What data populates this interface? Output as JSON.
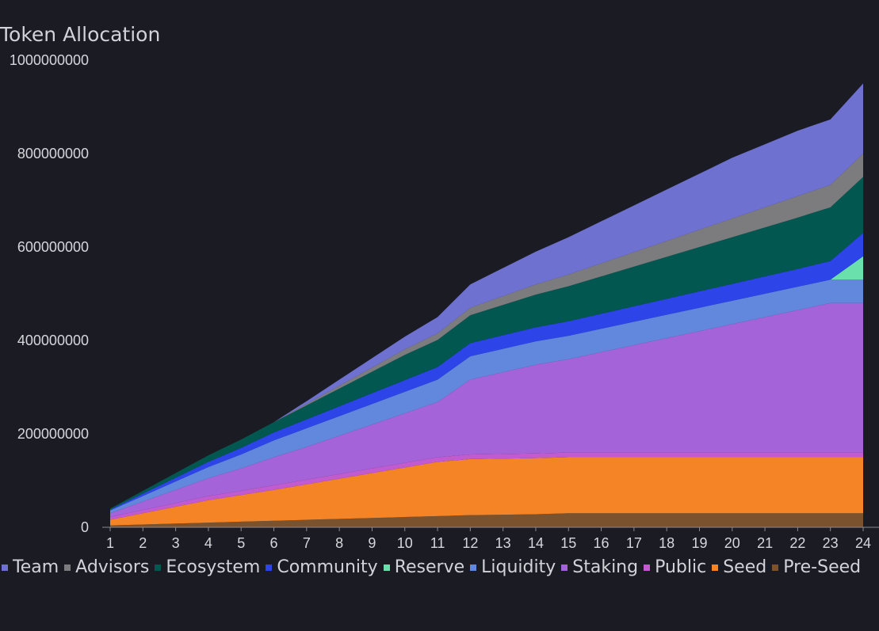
{
  "chart_data": {
    "type": "area",
    "stacked": true,
    "title": "Token Allocation",
    "xlabel": "",
    "ylabel": "",
    "ylim": [
      0,
      1000000000
    ],
    "yticks": [
      0,
      200000000,
      400000000,
      600000000,
      800000000,
      1000000000
    ],
    "yticks_labels": [
      "0",
      "200000000",
      "400000000",
      "600000000",
      "800000000",
      "1000000000"
    ],
    "x": [
      "1",
      "2",
      "3",
      "4",
      "5",
      "6",
      "7",
      "8",
      "9",
      "10",
      "11",
      "12",
      "13",
      "14",
      "15",
      "16",
      "17",
      "18",
      "19",
      "20",
      "21",
      "22",
      "23",
      "24"
    ],
    "grid": false,
    "legend_position": "bottom-left",
    "series": [
      {
        "name": "Pre-Seed",
        "color": "#7a532e",
        "values": [
          4000000,
          6000000,
          8000000,
          10000000,
          12000000,
          14000000,
          16000000,
          18000000,
          20000000,
          22000000,
          24000000,
          26000000,
          27000000,
          28000000,
          30000000,
          30000000,
          30000000,
          30000000,
          30000000,
          30000000,
          30000000,
          30000000,
          30000000,
          30000000
        ]
      },
      {
        "name": "Seed",
        "color": "#f58426",
        "values": [
          12000000,
          24000000,
          36000000,
          48000000,
          57000000,
          66000000,
          76000000,
          86000000,
          96000000,
          106000000,
          116000000,
          120000000,
          120000000,
          120000000,
          120000000,
          120000000,
          120000000,
          120000000,
          120000000,
          120000000,
          120000000,
          120000000,
          120000000,
          120000000
        ]
      },
      {
        "name": "Public",
        "color": "#c25bd0",
        "values": [
          6000000,
          7000000,
          8000000,
          9000000,
          9000000,
          10000000,
          10000000,
          10000000,
          10000000,
          10000000,
          10000000,
          10000000,
          10000000,
          10000000,
          10000000,
          10000000,
          10000000,
          10000000,
          10000000,
          10000000,
          10000000,
          10000000,
          10000000,
          10000000
        ]
      },
      {
        "name": "Staking",
        "color": "#a463d9",
        "values": [
          8000000,
          18000000,
          28000000,
          38000000,
          48000000,
          60000000,
          70000000,
          82000000,
          94000000,
          106000000,
          118000000,
          160000000,
          175000000,
          190000000,
          200000000,
          215000000,
          230000000,
          245000000,
          260000000,
          275000000,
          290000000,
          305000000,
          320000000,
          320000000
        ]
      },
      {
        "name": "Liquidity",
        "color": "#6288dd",
        "values": [
          6000000,
          12000000,
          18000000,
          24000000,
          30000000,
          36000000,
          40000000,
          42000000,
          44000000,
          46000000,
          48000000,
          50000000,
          50000000,
          50000000,
          50000000,
          50000000,
          50000000,
          50000000,
          50000000,
          50000000,
          50000000,
          50000000,
          50000000,
          50000000
        ]
      },
      {
        "name": "Reserve",
        "color": "#6ae1ad",
        "values": [
          0,
          0,
          0,
          0,
          0,
          0,
          0,
          0,
          0,
          0,
          0,
          0,
          0,
          0,
          0,
          0,
          0,
          0,
          0,
          0,
          0,
          0,
          0,
          50000000
        ]
      },
      {
        "name": "Community",
        "color": "#2d45e8",
        "values": [
          2000000,
          5000000,
          8000000,
          11000000,
          14000000,
          17000000,
          19000000,
          21000000,
          23000000,
          25000000,
          27000000,
          28000000,
          29000000,
          30000000,
          31000000,
          32000000,
          33000000,
          34000000,
          35000000,
          36000000,
          37000000,
          38000000,
          40000000,
          50000000
        ]
      },
      {
        "name": "Ecosystem",
        "color": "#035751",
        "values": [
          2000000,
          6000000,
          10000000,
          14000000,
          18000000,
          22000000,
          30000000,
          38000000,
          46000000,
          54000000,
          58000000,
          60000000,
          65000000,
          70000000,
          75000000,
          80000000,
          85000000,
          90000000,
          95000000,
          100000000,
          105000000,
          110000000,
          115000000,
          120000000
        ]
      },
      {
        "name": "Advisors",
        "color": "#7c7c7e",
        "values": [
          0,
          0,
          0,
          0,
          0,
          0,
          3000000,
          6000000,
          9000000,
          12000000,
          14000000,
          16000000,
          19000000,
          22000000,
          25000000,
          28000000,
          31000000,
          34000000,
          37000000,
          40000000,
          43000000,
          46000000,
          48000000,
          50000000
        ]
      },
      {
        "name": "Team",
        "color": "#6f71d0",
        "values": [
          0,
          0,
          0,
          0,
          0,
          0,
          6000000,
          13000000,
          20000000,
          27000000,
          35000000,
          50000000,
          60000000,
          70000000,
          80000000,
          90000000,
          100000000,
          110000000,
          120000000,
          130000000,
          135000000,
          140000000,
          140000000,
          150000000
        ]
      }
    ],
    "legend": [
      {
        "name": "Team",
        "color": "#6f71d0"
      },
      {
        "name": "Advisors",
        "color": "#7c7c7e"
      },
      {
        "name": "Ecosystem",
        "color": "#035751"
      },
      {
        "name": "Community",
        "color": "#2d45e8"
      },
      {
        "name": "Reserve",
        "color": "#6ae1ad"
      },
      {
        "name": "Liquidity",
        "color": "#6288dd"
      },
      {
        "name": "Staking",
        "color": "#a463d9"
      },
      {
        "name": "Public",
        "color": "#c25bd0"
      },
      {
        "name": "Seed",
        "color": "#f58426"
      },
      {
        "name": "Pre-Seed",
        "color": "#7a532e"
      }
    ],
    "axis_color": "#8a8a92",
    "background": "#1b1c23"
  }
}
